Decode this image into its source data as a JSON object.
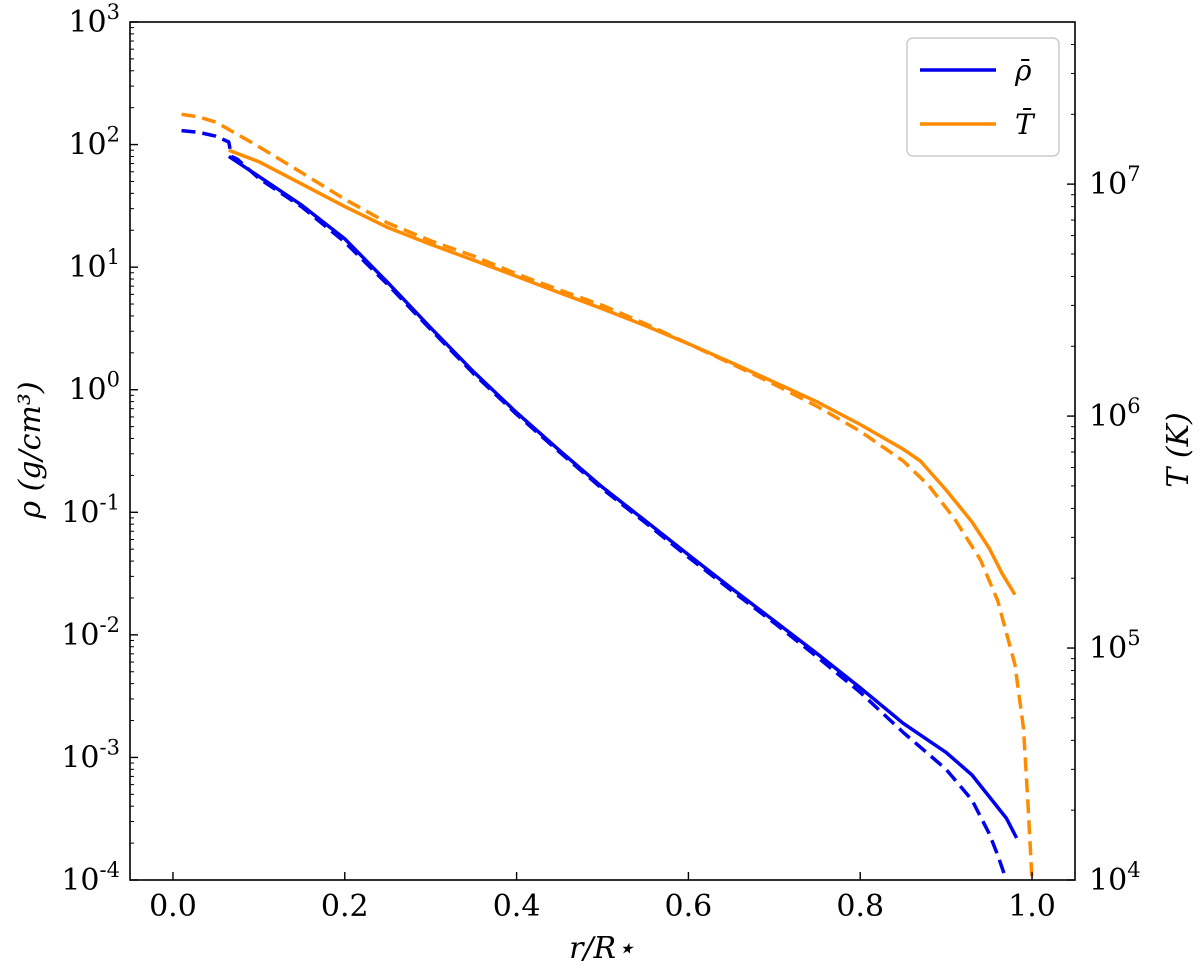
{
  "chart_data": {
    "type": "line",
    "xlabel": "r/R⋆",
    "ylabel_left": "ρ (g/cm³)",
    "ylabel_right": "T (K)",
    "xlim": [
      -0.05,
      1.05
    ],
    "ylim_left": [
      0.0001,
      1000
    ],
    "ylim_right": [
      10000,
      50000000
    ],
    "yscale": "log",
    "grid": false,
    "legend_position": "top-right",
    "x_ticks": [
      "0.0",
      "0.2",
      "0.4",
      "0.6",
      "0.8",
      "1.0"
    ],
    "x_tick_values": [
      0.0,
      0.2,
      0.4,
      0.6,
      0.8,
      1.0
    ],
    "left_ticks": [
      {
        "value": 1000,
        "base": "10",
        "exp": "3"
      },
      {
        "value": 100,
        "base": "10",
        "exp": "2"
      },
      {
        "value": 10,
        "base": "10",
        "exp": "1"
      },
      {
        "value": 1,
        "base": "10",
        "exp": "0"
      },
      {
        "value": 0.1,
        "base": "10",
        "exp": "-1"
      },
      {
        "value": 0.01,
        "base": "10",
        "exp": "-2"
      },
      {
        "value": 0.001,
        "base": "10",
        "exp": "-3"
      },
      {
        "value": 0.0001,
        "base": "10",
        "exp": "-4"
      }
    ],
    "right_ticks": [
      {
        "value": 10000000,
        "base": "10",
        "exp": "7"
      },
      {
        "value": 1000000,
        "base": "10",
        "exp": "6"
      },
      {
        "value": 100000,
        "base": "10",
        "exp": "5"
      },
      {
        "value": 10000,
        "base": "10",
        "exp": "4"
      }
    ],
    "legend": [
      {
        "label": "ρ̄",
        "color": "#0000ee"
      },
      {
        "label": "T̄",
        "color": "#ff8c00"
      }
    ],
    "series": [
      {
        "name": "ρ̄",
        "axis": "left",
        "style": "solid",
        "color": "#0000ee",
        "x": [
          0.065,
          0.1,
          0.15,
          0.2,
          0.25,
          0.3,
          0.35,
          0.4,
          0.45,
          0.5,
          0.55,
          0.6,
          0.65,
          0.7,
          0.75,
          0.8,
          0.85,
          0.9,
          0.93,
          0.95,
          0.97,
          0.982
        ],
        "y": [
          80,
          55,
          32,
          17,
          7.5,
          3.2,
          1.4,
          0.65,
          0.32,
          0.16,
          0.085,
          0.045,
          0.024,
          0.013,
          0.007,
          0.0037,
          0.0019,
          0.0011,
          0.00072,
          0.00048,
          0.00032,
          0.00022
        ]
      },
      {
        "name": "ρ̄",
        "axis": "left",
        "style": "dashed",
        "color": "#0000ee",
        "x": [
          0.01,
          0.03,
          0.05,
          0.065,
          0.068,
          0.075,
          0.1,
          0.15,
          0.2,
          0.25,
          0.3,
          0.35,
          0.4,
          0.45,
          0.5,
          0.55,
          0.6,
          0.65,
          0.7,
          0.75,
          0.8,
          0.85,
          0.9,
          0.93,
          0.95,
          0.96,
          0.97
        ],
        "y": [
          130,
          126,
          117,
          105,
          80,
          76,
          53,
          31,
          16,
          7.2,
          3.1,
          1.35,
          0.63,
          0.31,
          0.155,
          0.082,
          0.043,
          0.023,
          0.0125,
          0.0066,
          0.0034,
          0.0016,
          0.0008,
          0.00045,
          0.00024,
          0.00016,
          0.0001
        ]
      },
      {
        "name": "T̄",
        "axis": "right",
        "style": "solid",
        "color": "#ff8c00",
        "x": [
          0.065,
          0.1,
          0.15,
          0.2,
          0.25,
          0.3,
          0.35,
          0.4,
          0.45,
          0.5,
          0.55,
          0.6,
          0.65,
          0.7,
          0.75,
          0.8,
          0.85,
          0.87,
          0.9,
          0.93,
          0.95,
          0.965,
          0.98
        ],
        "y": [
          14000000,
          12500000,
          10000000,
          8000000,
          6500000,
          5500000,
          4700000,
          4000000,
          3400000,
          2900000,
          2450000,
          2050000,
          1700000,
          1400000,
          1150000,
          920000,
          720000,
          640000,
          480000,
          350000,
          270000,
          210000,
          170000
        ]
      },
      {
        "name": "T̄",
        "axis": "right",
        "style": "dashed",
        "color": "#ff8c00",
        "x": [
          0.01,
          0.03,
          0.05,
          0.08,
          0.1,
          0.15,
          0.2,
          0.25,
          0.3,
          0.35,
          0.4,
          0.45,
          0.5,
          0.55,
          0.6,
          0.65,
          0.7,
          0.75,
          0.8,
          0.85,
          0.88,
          0.91,
          0.94,
          0.96,
          0.98,
          0.99,
          0.995,
          1.0
        ],
        "y": [
          20000000,
          19500000,
          18500000,
          16000000,
          14500000,
          11200000,
          8600000,
          6800000,
          5700000,
          4900000,
          4100000,
          3500000,
          3000000,
          2500000,
          2050000,
          1680000,
          1370000,
          1100000,
          860000,
          640000,
          500000,
          360000,
          240000,
          160000,
          85000,
          45000,
          22000,
          10000
        ]
      }
    ]
  }
}
